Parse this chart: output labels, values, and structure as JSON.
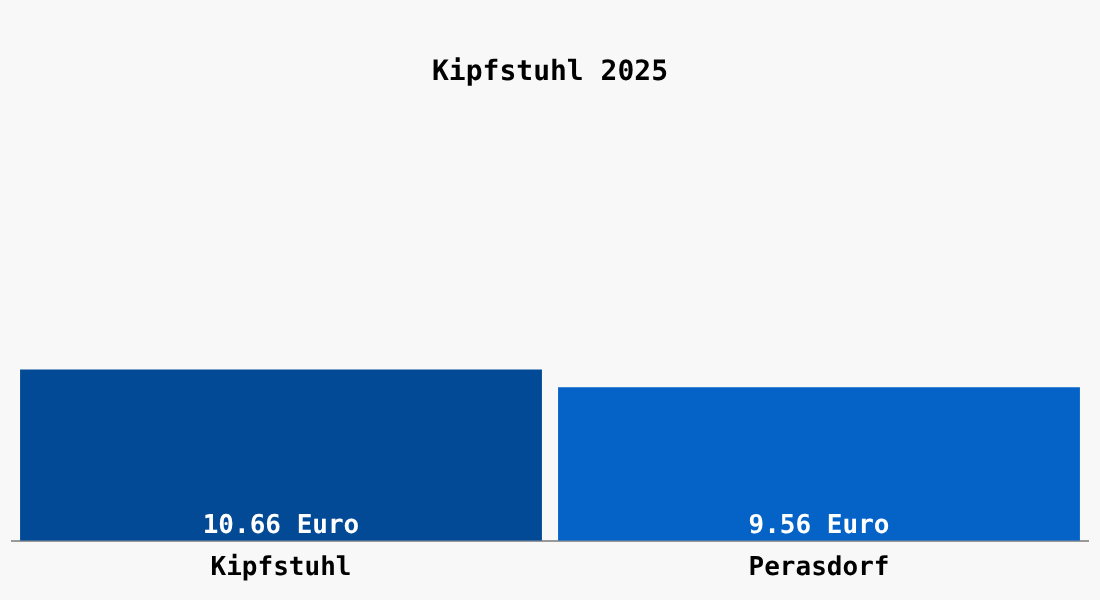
{
  "chart_data": {
    "type": "bar",
    "title": "Kipfstuhl 2025",
    "categories": [
      "Kipfstuhl",
      "Perasdorf"
    ],
    "values": [
      10.66,
      9.56
    ],
    "colors": [
      "#034a96",
      "#0563c8"
    ],
    "value_labels": [
      "10.66 Euro",
      "9.56 Euro"
    ],
    "grid": false,
    "legend": false
  }
}
